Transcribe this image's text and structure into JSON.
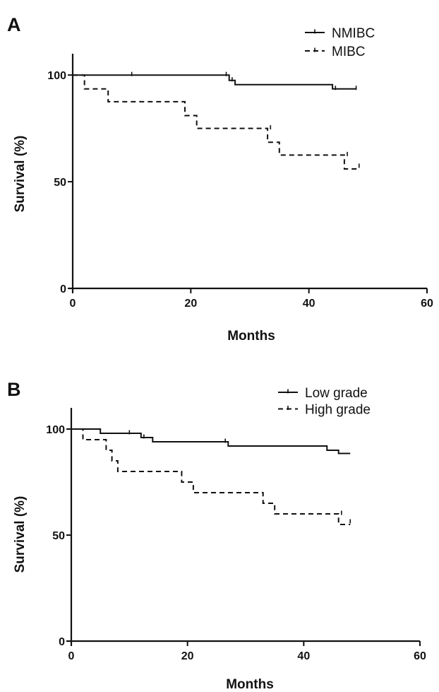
{
  "chart_data": [
    {
      "type": "line",
      "subtype": "kaplan-meier",
      "panel_label": "A",
      "xlabel": "Months",
      "ylabel": "Survival (%)",
      "xlim": [
        0,
        60
      ],
      "ylim": [
        0,
        110
      ],
      "xticks": [
        0,
        20,
        40,
        60
      ],
      "yticks": [
        0,
        50,
        100
      ],
      "grid": false,
      "legend_position": "top-right",
      "series": [
        {
          "name": "NMIBC",
          "style": "solid",
          "points": [
            [
              0,
              100
            ],
            [
              26.5,
              100
            ],
            [
              26.5,
              97.5
            ],
            [
              27.5,
              97.5
            ],
            [
              27.5,
              95.5
            ],
            [
              44,
              95.5
            ],
            [
              44,
              93.5
            ],
            [
              48,
              93.5
            ]
          ],
          "censored": [
            [
              10,
              100
            ],
            [
              26,
              100
            ],
            [
              27,
              97.5
            ],
            [
              44.5,
              93.5
            ],
            [
              48,
              93.5
            ]
          ]
        },
        {
          "name": "MIBC",
          "style": "dashed",
          "points": [
            [
              0,
              100
            ],
            [
              2,
              100
            ],
            [
              2,
              93.5
            ],
            [
              6,
              93.5
            ],
            [
              6,
              87.5
            ],
            [
              19,
              87.5
            ],
            [
              19,
              81
            ],
            [
              21,
              81
            ],
            [
              21,
              75
            ],
            [
              33,
              75
            ],
            [
              33,
              68.5
            ],
            [
              35,
              68.5
            ],
            [
              35,
              62.5
            ],
            [
              46,
              62.5
            ],
            [
              46,
              56
            ],
            [
              48.5,
              56
            ]
          ],
          "censored": [
            [
              33.5,
              75
            ],
            [
              46.5,
              62.5
            ],
            [
              48.5,
              57
            ]
          ]
        }
      ]
    },
    {
      "type": "line",
      "subtype": "kaplan-meier",
      "panel_label": "B",
      "xlabel": "Months",
      "ylabel": "Survival (%)",
      "xlim": [
        0,
        60
      ],
      "ylim": [
        0,
        110
      ],
      "xticks": [
        0,
        20,
        40,
        60
      ],
      "yticks": [
        0,
        50,
        100
      ],
      "grid": false,
      "legend_position": "top-right",
      "series": [
        {
          "name": "Low grade",
          "style": "solid",
          "points": [
            [
              0,
              100
            ],
            [
              5,
              100
            ],
            [
              5,
              98
            ],
            [
              12,
              98
            ],
            [
              12,
              96
            ],
            [
              14,
              96
            ],
            [
              14,
              94
            ],
            [
              27,
              94
            ],
            [
              27,
              92
            ],
            [
              44,
              92
            ],
            [
              44,
              90
            ],
            [
              46,
              90
            ],
            [
              46,
              88.5
            ],
            [
              48,
              88.5
            ]
          ],
          "censored": [
            [
              10,
              98
            ],
            [
              12.5,
              96
            ],
            [
              26.5,
              94
            ]
          ]
        },
        {
          "name": "High grade",
          "style": "dashed",
          "points": [
            [
              0,
              100
            ],
            [
              2,
              100
            ],
            [
              2,
              95
            ],
            [
              6,
              95
            ],
            [
              6,
              90
            ],
            [
              7,
              90
            ],
            [
              7,
              85
            ],
            [
              8,
              85
            ],
            [
              8,
              80
            ],
            [
              19,
              80
            ],
            [
              19,
              75
            ],
            [
              21,
              75
            ],
            [
              21,
              70
            ],
            [
              33,
              70
            ],
            [
              33,
              65
            ],
            [
              35,
              65
            ],
            [
              35,
              60
            ],
            [
              46,
              60
            ],
            [
              46,
              55
            ],
            [
              48,
              55
            ]
          ],
          "censored": [
            [
              46.5,
              60
            ],
            [
              48,
              56
            ]
          ]
        }
      ]
    }
  ]
}
